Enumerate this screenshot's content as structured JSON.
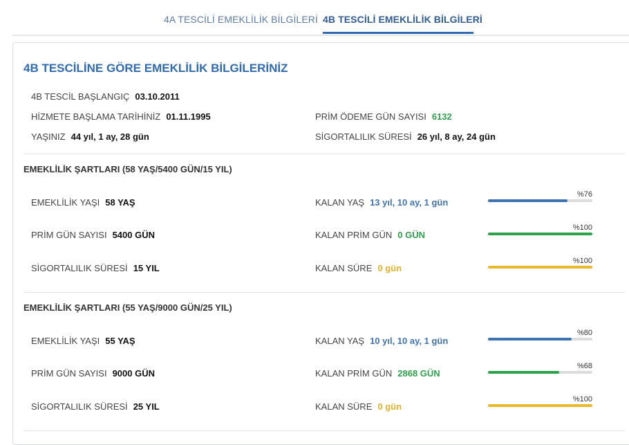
{
  "tabs": [
    {
      "label": "4A TESCİLİ EMEKLİLİK BİLGİLERİ"
    },
    {
      "label": "4B TESCİLİ EMEKLİLİK BİLGİLERİ"
    }
  ],
  "page_title": "4B TESCİLİNE GÖRE EMEKLİLİK BİLGİLERİNİZ",
  "info": {
    "tescil_label": "4B TESCİL BAŞLANGIÇ",
    "tescil_value": "03.10.2011",
    "hizmet_label": "HİZMETE BAŞLAMA TARİHİNİZ",
    "hizmet_value": "01.11.1995",
    "prim_odeme_label": "PRİM ÖDEME GÜN SAYISI",
    "prim_odeme_value": "6132",
    "yas_label": "YAŞINIZ",
    "yas_value": "44 yıl, 1 ay, 28 gün",
    "sigortalilik_label": "SİGORTALILIK SÜRESİ",
    "sigortalilik_value": "26 yıl, 8 ay, 24 gün"
  },
  "sections": [
    {
      "title": "EMEKLİLİK ŞARTLARI (58 YAŞ/5400 GÜN/15 YIL)",
      "rows": [
        {
          "label": "EMEKLİLİK YAŞI",
          "value": "58 YAŞ",
          "remain_label": "KALAN YAŞ",
          "remain_value": "13 yıl, 10 ay, 1 gün",
          "pct_text": "%76",
          "pct": 0.76,
          "color": "blue"
        },
        {
          "label": "PRİM GÜN SAYISI",
          "value": "5400 GÜN",
          "remain_label": "KALAN PRİM GÜN",
          "remain_value": "0 GÜN",
          "pct_text": "%100",
          "pct": 1.0,
          "color": "green"
        },
        {
          "label": "SİGORTALILIK SÜRESİ",
          "value": "15 YIL",
          "remain_label": "KALAN SÜRE",
          "remain_value": "0 gün",
          "pct_text": "%100",
          "pct": 1.0,
          "color": "yellow"
        }
      ]
    },
    {
      "title": "EMEKLİLİK ŞARTLARI (55 YAŞ/9000 GÜN/25 YIL)",
      "rows": [
        {
          "label": "EMEKLİLİK YAŞI",
          "value": "55 YAŞ",
          "remain_label": "KALAN YAŞ",
          "remain_value": "10 yıl, 10 ay, 1 gün",
          "pct_text": "%80",
          "pct": 0.8,
          "color": "blue"
        },
        {
          "label": "PRİM GÜN SAYISI",
          "value": "9000 GÜN",
          "remain_label": "KALAN PRİM GÜN",
          "remain_value": "2868 GÜN",
          "pct_text": "%68",
          "pct": 0.68,
          "color": "green"
        },
        {
          "label": "SİGORTALILIK SÜRESİ",
          "value": "25 YIL",
          "remain_label": "KALAN SÜRE",
          "remain_value": "0 gün",
          "pct_text": "%100",
          "pct": 1.0,
          "color": "yellow"
        }
      ]
    }
  ]
}
